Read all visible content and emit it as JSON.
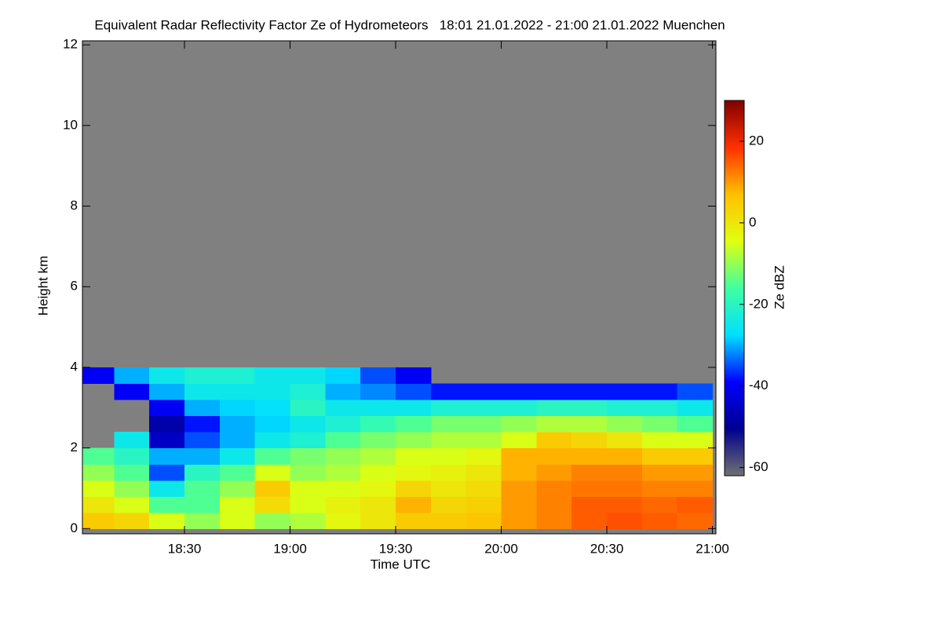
{
  "chart_data": {
    "type": "heatmap",
    "title": "Equivalent Radar Reflectivity Factor Ze of Hydrometeors   18:01 21.01.2022 - 21:00 21.01.2022 Muenchen",
    "xlabel": "Time UTC",
    "ylabel": "Height km",
    "colorbar_label": "Ze dBZ",
    "xlim": [
      1081,
      1261
    ],
    "xticks": [
      {
        "value": 1110,
        "label": "18:30"
      },
      {
        "value": 1140,
        "label": "19:00"
      },
      {
        "value": 1170,
        "label": "19:30"
      },
      {
        "value": 1200,
        "label": "20:00"
      },
      {
        "value": 1230,
        "label": "20:30"
      },
      {
        "value": 1260,
        "label": "21:00"
      }
    ],
    "ylim": [
      -0.13,
      12.1
    ],
    "yticks": [
      0,
      2,
      4,
      6,
      8,
      10,
      12
    ],
    "xbins": [
      1080,
      1090,
      1100,
      1110,
      1120,
      1130,
      1140,
      1150,
      1160,
      1170,
      1180,
      1190,
      1200,
      1210,
      1220,
      1230,
      1240,
      1250,
      1260
    ],
    "ybins": [
      0,
      0.4,
      0.8,
      1.2,
      1.6,
      2.0,
      2.4,
      2.8,
      3.2,
      3.6,
      4.0
    ],
    "values": [
      [
        5,
        3,
        -5,
        -10,
        -5,
        -10,
        -8,
        -3,
        0,
        5,
        5,
        6,
        10,
        12,
        15,
        16,
        15,
        14
      ],
      [
        0,
        -5,
        -15,
        -15,
        -5,
        2,
        -5,
        -2,
        0,
        8,
        3,
        4,
        10,
        12,
        15,
        15,
        14,
        15
      ],
      [
        -5,
        -10,
        -25,
        -15,
        -10,
        5,
        -5,
        -5,
        -3,
        3,
        0,
        2,
        10,
        12,
        13,
        13,
        12,
        12
      ],
      [
        -10,
        -15,
        -35,
        -20,
        -15,
        -5,
        -10,
        -8,
        -5,
        -3,
        -2,
        0,
        8,
        10,
        12,
        12,
        10,
        10
      ],
      [
        -15,
        -20,
        -30,
        -30,
        -25,
        -15,
        -12,
        -10,
        -8,
        -5,
        -5,
        -3,
        8,
        8,
        8,
        8,
        5,
        5
      ],
      [
        null,
        -25,
        -45,
        -35,
        -30,
        -25,
        -22,
        -15,
        -12,
        -10,
        -8,
        -8,
        -5,
        5,
        3,
        0,
        -5,
        -5
      ],
      [
        null,
        null,
        -48,
        -38,
        -30,
        -28,
        -25,
        -22,
        -18,
        -15,
        -12,
        -12,
        -10,
        -8,
        -8,
        -10,
        -12,
        -15
      ],
      [
        null,
        null,
        -40,
        -30,
        -28,
        -27,
        -20,
        -25,
        -25,
        -25,
        -22,
        -22,
        -22,
        -20,
        -20,
        -22,
        -22,
        -25
      ],
      [
        null,
        -40,
        -30,
        -25,
        -25,
        -25,
        -22,
        -30,
        -32,
        -35,
        -38,
        -38,
        -38,
        -38,
        -38,
        -38,
        -38,
        -35
      ],
      [
        -40,
        -30,
        -25,
        -22,
        -22,
        -25,
        -25,
        -28,
        -35,
        -40,
        null,
        null,
        null,
        null,
        null,
        null,
        null,
        null
      ]
    ],
    "missing_color": "#808080",
    "zlim": [
      -62,
      30
    ],
    "zticks": [
      -60,
      -40,
      -20,
      0,
      20
    ],
    "colormap": [
      "#707070",
      "#000090",
      "#0000ff",
      "#00e0ff",
      "#40ffa0",
      "#e0ff10",
      "#ffc000",
      "#ff3000",
      "#800000"
    ]
  }
}
